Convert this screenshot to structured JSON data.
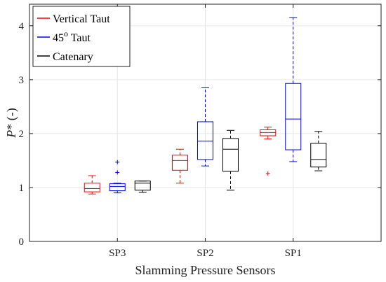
{
  "chart_data": {
    "type": "boxplot",
    "xlabel": "Slamming Pressure Sensors",
    "ylabel": "P* (-)",
    "ylim": [
      0,
      4.4
    ],
    "yticks": [
      0,
      1,
      2,
      3,
      4
    ],
    "grid": true,
    "legend_position": "top-left",
    "categories": [
      "SP3",
      "SP2",
      "SP1"
    ],
    "series": [
      {
        "name": "Vertical Taut",
        "color": "#ff0000",
        "boxes": [
          {
            "whisker_low": 0.88,
            "q1": 0.92,
            "median": 0.98,
            "q3": 1.08,
            "whisker_high": 1.22,
            "outliers": []
          },
          {
            "whisker_low": 1.08,
            "q1": 1.32,
            "median": 1.5,
            "q3": 1.6,
            "whisker_high": 1.71,
            "outliers": []
          },
          {
            "whisker_low": 1.9,
            "q1": 1.96,
            "median": 2.02,
            "q3": 2.07,
            "whisker_high": 2.12,
            "outliers": [
              1.26
            ]
          }
        ]
      },
      {
        "name": "45° Taut",
        "color": "#0000ff",
        "boxes": [
          {
            "whisker_low": 0.9,
            "q1": 0.94,
            "median": 1.02,
            "q3": 1.07,
            "whisker_high": 1.08,
            "outliers": [
              1.28,
              1.47
            ]
          },
          {
            "whisker_low": 1.4,
            "q1": 1.52,
            "median": 1.86,
            "q3": 2.22,
            "whisker_high": 2.85,
            "outliers": []
          },
          {
            "whisker_low": 1.48,
            "q1": 1.7,
            "median": 2.27,
            "q3": 2.93,
            "whisker_high": 4.15,
            "outliers": []
          }
        ]
      },
      {
        "name": "Catenary",
        "color": "#000000",
        "boxes": [
          {
            "whisker_low": 0.91,
            "q1": 0.95,
            "median": 1.08,
            "q3": 1.12,
            "whisker_high": 1.12,
            "outliers": []
          },
          {
            "whisker_low": 0.95,
            "q1": 1.3,
            "median": 1.71,
            "q3": 1.91,
            "whisker_high": 2.06,
            "outliers": []
          },
          {
            "whisker_low": 1.31,
            "q1": 1.38,
            "median": 1.52,
            "q3": 1.82,
            "whisker_high": 2.04,
            "outliers": []
          }
        ]
      }
    ],
    "legend": [
      {
        "label": "Vertical Taut",
        "color": "#ff0000"
      },
      {
        "label_main": "45",
        "label_sup": "o",
        "label_rest": " Taut",
        "color": "#0000ff"
      },
      {
        "label": "Catenary",
        "color": "#000000"
      }
    ]
  }
}
